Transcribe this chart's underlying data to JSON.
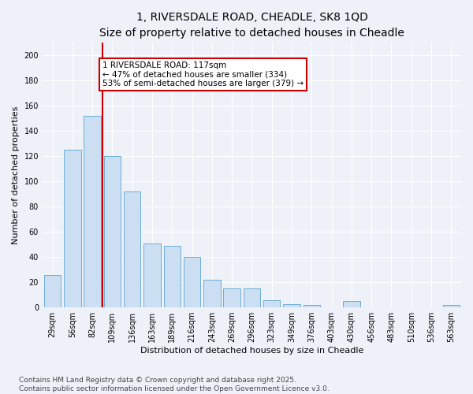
{
  "title": "1, RIVERSDALE ROAD, CHEADLE, SK8 1QD",
  "subtitle": "Size of property relative to detached houses in Cheadle",
  "xlabel": "Distribution of detached houses by size in Cheadle",
  "ylabel": "Number of detached properties",
  "categories": [
    "29sqm",
    "56sqm",
    "82sqm",
    "109sqm",
    "136sqm",
    "163sqm",
    "189sqm",
    "216sqm",
    "243sqm",
    "269sqm",
    "296sqm",
    "323sqm",
    "349sqm",
    "376sqm",
    "403sqm",
    "430sqm",
    "456sqm",
    "483sqm",
    "510sqm",
    "536sqm",
    "563sqm"
  ],
  "values": [
    26,
    125,
    152,
    120,
    92,
    51,
    49,
    40,
    22,
    15,
    15,
    6,
    3,
    2,
    0,
    5,
    0,
    0,
    0,
    0,
    2
  ],
  "bar_color": "#ccdff2",
  "bar_edge_color": "#6aaed6",
  "vline_color": "#cc0000",
  "vline_x": 2.5,
  "annotation_text": "1 RIVERSDALE ROAD: 117sqm\n← 47% of detached houses are smaller (334)\n53% of semi-detached houses are larger (379) →",
  "annotation_box_facecolor": "#ffffff",
  "annotation_box_edgecolor": "#cc0000",
  "ylim": [
    0,
    210
  ],
  "yticks": [
    0,
    20,
    40,
    60,
    80,
    100,
    120,
    140,
    160,
    180,
    200
  ],
  "bg_color": "#eef2f8",
  "grid_color": "#ffffff",
  "footer": "Contains HM Land Registry data © Crown copyright and database right 2025.\nContains public sector information licensed under the Open Government Licence v3.0.",
  "title_fontsize": 10,
  "subtitle_fontsize": 9,
  "ylabel_fontsize": 8,
  "xlabel_fontsize": 8,
  "tick_fontsize": 7,
  "annotation_fontsize": 7.5,
  "footer_fontsize": 6.5
}
